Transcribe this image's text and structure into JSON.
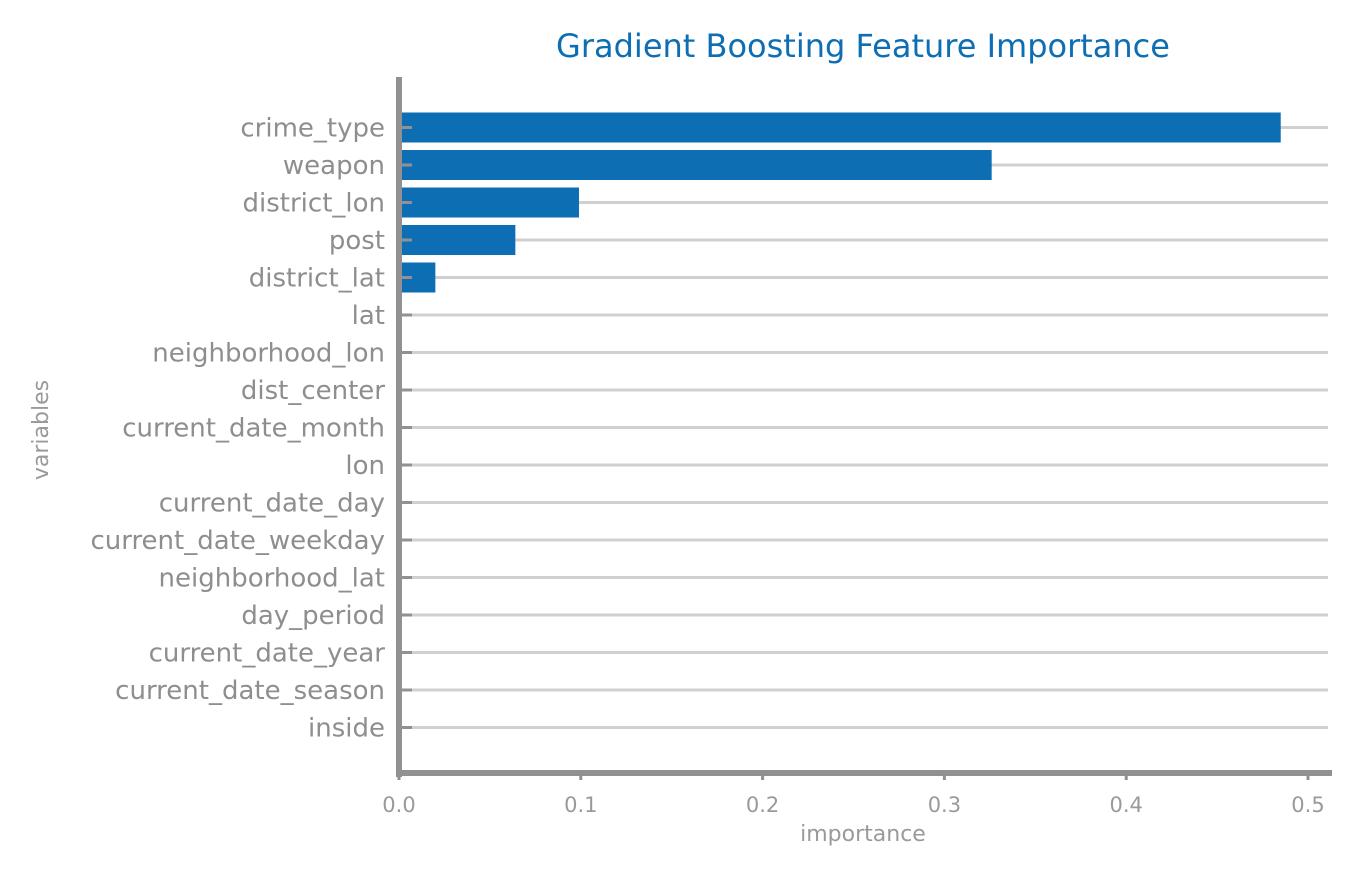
{
  "chart_data": {
    "type": "bar",
    "orientation": "horizontal",
    "title": "Gradient Boosting Feature Importance",
    "xlabel": "importance",
    "ylabel": "variables",
    "categories": [
      "crime_type",
      "weapon",
      "district_lon",
      "post",
      "district_lat",
      "lat",
      "neighborhood_lon",
      "dist_center",
      "current_date_month",
      "lon",
      "current_date_day",
      "current_date_weekday",
      "neighborhood_lat",
      "day_period",
      "current_date_year",
      "current_date_season",
      "inside"
    ],
    "values": [
      0.485,
      0.326,
      0.099,
      0.064,
      0.02,
      0,
      0,
      0,
      0,
      0,
      0,
      0,
      0,
      0,
      0,
      0,
      0
    ],
    "xlim": [
      0,
      0.51
    ],
    "xticks": [
      0.0,
      0.1,
      0.2,
      0.3,
      0.4,
      0.5
    ],
    "xtick_labels": [
      "0.0",
      "0.1",
      "0.2",
      "0.3",
      "0.4",
      "0.5"
    ],
    "grid": "horizontal lines per category",
    "legend": "none",
    "colors": {
      "bar": "#0e6eb4",
      "title": "#0e6eb4",
      "axis": "#919193",
      "grid": "#d0d0d0",
      "text": "#8e8e90"
    }
  }
}
